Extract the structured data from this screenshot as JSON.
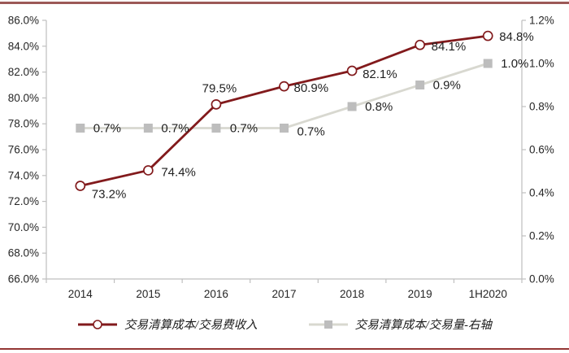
{
  "page": {
    "top_rule_color": "#9c5957",
    "bottom_rule_color": "#943634",
    "background": "#ffffff"
  },
  "chart_data": {
    "type": "line",
    "categories": [
      "2014",
      "2015",
      "2016",
      "2017",
      "2018",
      "2019",
      "1H2020"
    ],
    "series": [
      {
        "name": "交易清算成本/交易费收入",
        "axis": "left",
        "color": "#821a1c",
        "marker": "circle",
        "marker_fill": "#ffffff",
        "values": [
          73.2,
          74.4,
          79.5,
          80.9,
          82.1,
          84.1,
          84.8
        ],
        "labels": [
          "73.2%",
          "74.4%",
          "79.5%",
          "80.9%",
          "82.1%",
          "84.1%",
          "84.8%"
        ]
      },
      {
        "name": "交易清算成本/交易量-右轴",
        "axis": "right",
        "color": "#d8d8d0",
        "marker": "square",
        "marker_fill": "#bdbdbd",
        "values": [
          0.7,
          0.7,
          0.7,
          0.7,
          0.8,
          0.9,
          1.0
        ],
        "labels": [
          "0.7%",
          "0.7%",
          "0.7%",
          "0.7%",
          "0.8%",
          "0.9%",
          "1.0%"
        ]
      }
    ],
    "left_axis": {
      "min": 66.0,
      "max": 86.0,
      "step": 2.0,
      "tick_labels": [
        "86.0%",
        "84.0%",
        "82.0%",
        "80.0%",
        "78.0%",
        "76.0%",
        "74.0%",
        "72.0%",
        "70.0%",
        "68.0%",
        "66.0%"
      ]
    },
    "right_axis": {
      "min": 0.0,
      "max": 1.2,
      "step": 0.2,
      "tick_labels": [
        "1.2%",
        "1.0%",
        "0.8%",
        "0.6%",
        "0.4%",
        "0.2%",
        "0.0%"
      ]
    },
    "grid": "off",
    "legend_position": "bottom",
    "axis_line_color": "#bfbfbf",
    "axis_label_color": "#262626",
    "data_label_color": "#1f1f1f"
  }
}
